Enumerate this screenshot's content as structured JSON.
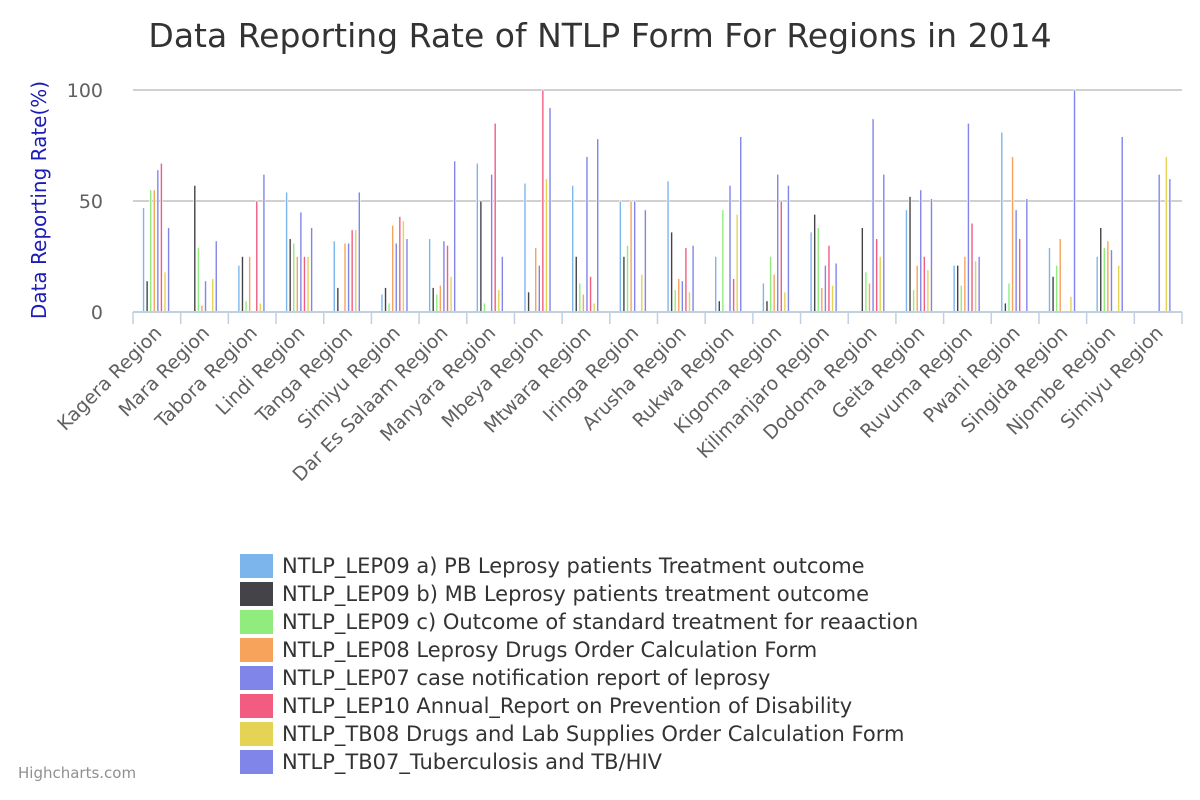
{
  "chart_data": {
    "type": "bar",
    "title": "Data Reporting Rate of NTLP Form For Regions in 2014",
    "xlabel": "",
    "ylabel": "Data Reporting Rate(%)",
    "ylim": [
      0,
      100
    ],
    "yticks": [
      0,
      50,
      100
    ],
    "grid": true,
    "legend_position": "bottom",
    "categories": [
      "Kagera Region",
      "Mara Region",
      "Tabora Region",
      "Lindi Region",
      "Tanga Region",
      "Simiyu Region",
      "Dar Es Salaam Region",
      "Manyara Region",
      "Mbeya Region",
      "Mtwara Region",
      "Iringa Region",
      "Arusha Region",
      "Rukwa Region",
      "Kigoma Region",
      "Kilimanjaro Region",
      "Dodoma Region",
      "Geita Region",
      "Ruvuma Region",
      "Pwani Region",
      "Singida Region",
      "Njombe Region",
      "Simiyu Region"
    ],
    "series": [
      {
        "name": "NTLP_LEP09 a) PB Leprosy patients Treatment outcome",
        "color": "#7cb5ec",
        "values": [
          47,
          0,
          21,
          54,
          32,
          8,
          33,
          67,
          58,
          57,
          50,
          59,
          25,
          13,
          36,
          0,
          46,
          21,
          81,
          29,
          25,
          0
        ]
      },
      {
        "name": "NTLP_LEP09 b) MB Leprosy patients treatment outcome",
        "color": "#434348",
        "values": [
          14,
          57,
          25,
          33,
          11,
          11,
          11,
          50,
          9,
          25,
          25,
          36,
          5,
          5,
          44,
          38,
          52,
          21,
          4,
          16,
          38,
          0
        ]
      },
      {
        "name": "NTLP_LEP09 c) Outcome of standard treatment for reaaction",
        "color": "#90ed7d",
        "values": [
          55,
          29,
          5,
          31,
          0,
          4,
          8,
          4,
          0,
          13,
          30,
          10,
          46,
          25,
          38,
          18,
          10,
          12,
          13,
          21,
          29,
          0
        ]
      },
      {
        "name": "NTLP_LEP08 Leprosy Drugs Order Calculation Form",
        "color": "#f7a35c",
        "values": [
          55,
          3,
          25,
          25,
          31,
          39,
          12,
          0,
          29,
          8,
          50,
          15,
          0,
          17,
          11,
          13,
          21,
          25,
          70,
          33,
          32,
          0
        ]
      },
      {
        "name": "NTLP_LEP07 case notification report of leprosy",
        "color": "#8085e9",
        "values": [
          64,
          14,
          0,
          45,
          31,
          31,
          32,
          62,
          21,
          70,
          50,
          14,
          57,
          62,
          21,
          87,
          55,
          85,
          46,
          0,
          28,
          62
        ]
      },
      {
        "name": "NTLP_LEP10 Annual_Report on Prevention of Disability",
        "color": "#f15c80",
        "values": [
          67,
          0,
          50,
          25,
          37,
          43,
          30,
          85,
          100,
          16,
          0,
          29,
          15,
          50,
          30,
          33,
          25,
          40,
          33,
          0,
          0,
          0
        ]
      },
      {
        "name": "NTLP_TB08 Drugs and Lab Supplies Order Calculation Form",
        "color": "#e4d354",
        "values": [
          18,
          15,
          4,
          25,
          37,
          41,
          16,
          10,
          60,
          4,
          17,
          9,
          44,
          9,
          12,
          25,
          19,
          23,
          0,
          7,
          21,
          70
        ]
      },
      {
        "name": "NTLP_TB07_Tuberculosis and TB/HIV",
        "color": "#8085e9",
        "values": [
          38,
          32,
          62,
          38,
          54,
          33,
          68,
          25,
          92,
          78,
          46,
          30,
          79,
          57,
          22,
          62,
          51,
          25,
          51,
          100,
          79,
          60
        ]
      }
    ]
  },
  "credits": "Highcharts.com"
}
